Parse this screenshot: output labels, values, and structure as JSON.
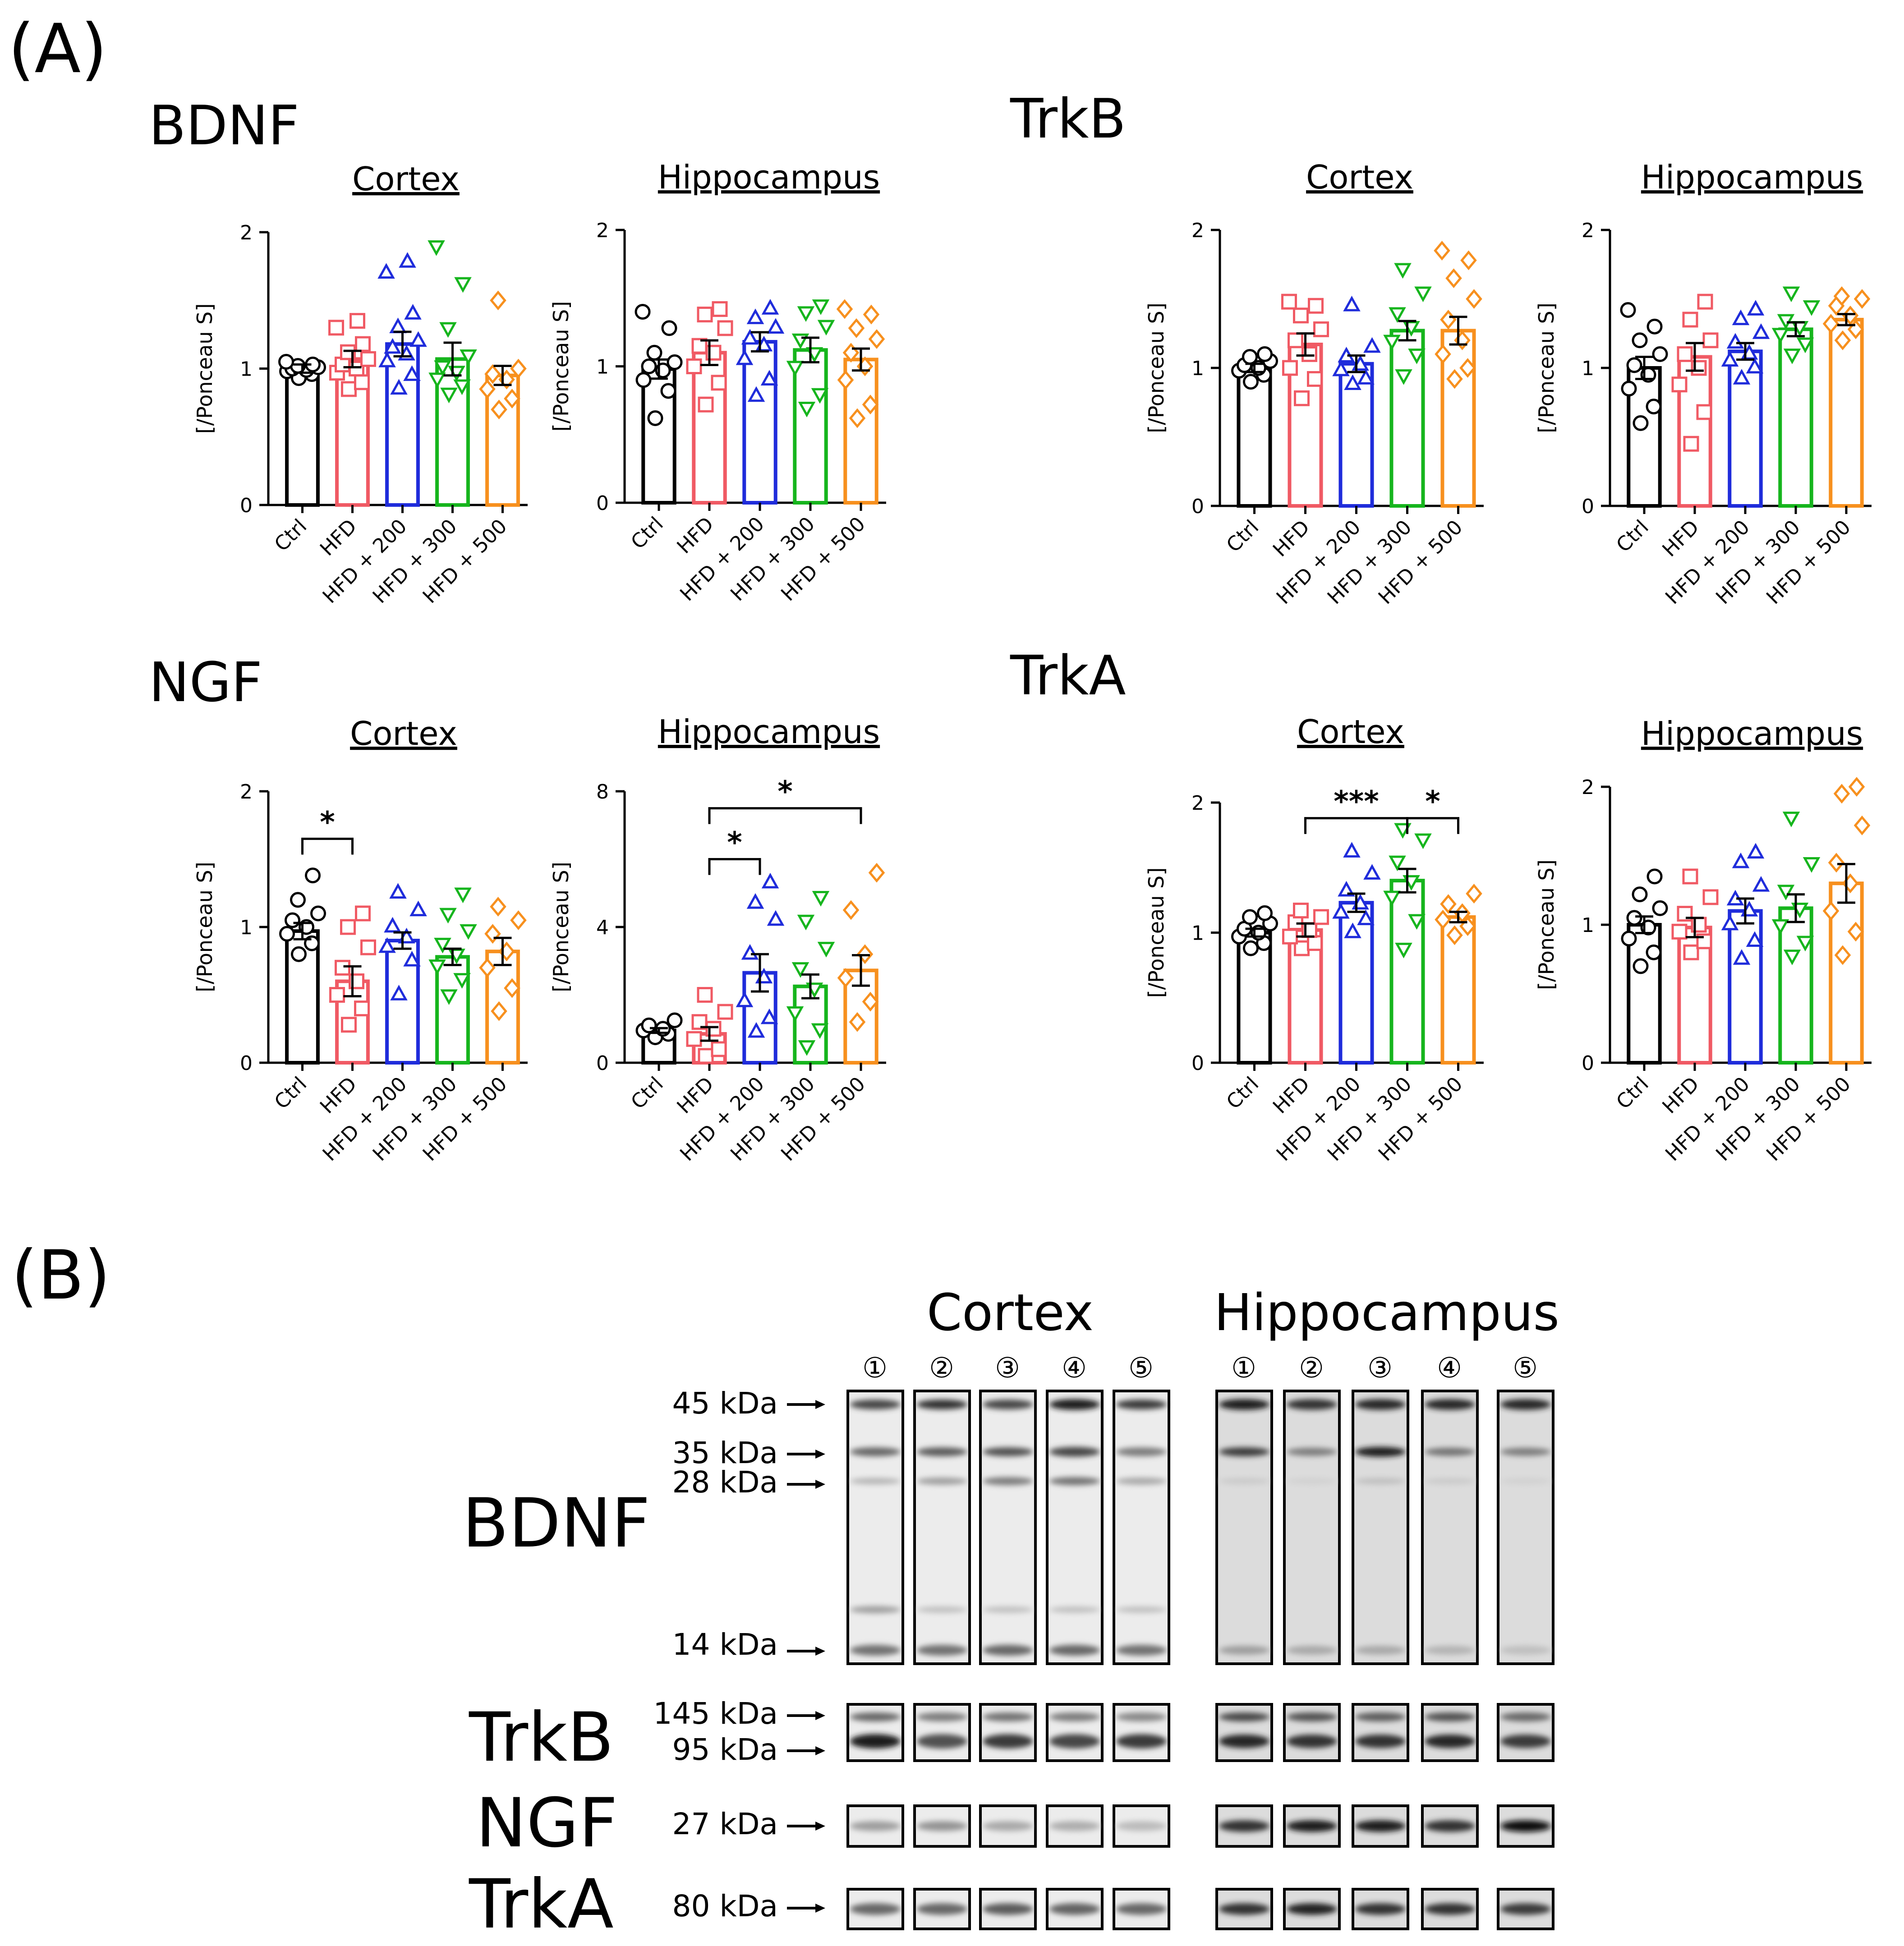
{
  "panel_labels": {
    "a": "(A)",
    "b": "(B)"
  },
  "colors": {
    "Ctrl": "#000000",
    "HFD": "#f05a64",
    "HFD + 200": "#1f2cdb",
    "HFD + 300": "#16b51d",
    "HFD + 500": "#f7901e"
  },
  "markers": {
    "Ctrl": "circle",
    "HFD": "square",
    "HFD + 200": "triangle-up",
    "HFD + 300": "triangle-down",
    "HFD + 500": "diamond"
  },
  "protein_labels": {
    "bdnf": "BDNF",
    "trkb": "TrkB",
    "ngf": "NGF",
    "trka": "TrkA"
  },
  "chart_data": [
    {
      "id": "bdnf_cortex",
      "protein": "BDNF",
      "type": "bar",
      "title": "Cortex",
      "ylabel": "[/Ponceau S]",
      "ylim": [
        0,
        2
      ],
      "yticks": [
        "0",
        "1",
        "2"
      ],
      "categories": [
        "Ctrl",
        "HFD",
        "HFD + 200",
        "HFD + 300",
        "HFD + 500"
      ],
      "values": [
        1.0,
        1.07,
        1.18,
        1.07,
        0.95
      ],
      "sem": [
        0.03,
        0.06,
        0.09,
        0.12,
        0.07
      ],
      "points": [
        [
          0.93,
          0.96,
          0.98,
          0.99,
          1.0,
          1.01,
          1.02,
          1.03,
          1.05
        ],
        [
          0.85,
          0.9,
          0.97,
          1.0,
          1.03,
          1.07,
          1.12,
          1.18,
          1.3,
          1.35
        ],
        [
          0.85,
          0.95,
          1.05,
          1.1,
          1.15,
          1.2,
          1.3,
          1.4,
          1.7,
          1.78
        ],
        [
          0.82,
          0.88,
          0.93,
          0.98,
          1.02,
          1.1,
          1.3,
          1.63,
          1.9
        ],
        [
          0.7,
          0.78,
          0.85,
          0.92,
          0.96,
          1.0,
          1.5
        ]
      ],
      "significance": []
    },
    {
      "id": "bdnf_hippocampus",
      "protein": "BDNF",
      "type": "bar",
      "title": "Hippocampus",
      "ylabel": "[/Ponceau S]",
      "ylim": [
        0,
        2
      ],
      "yticks": [
        "0",
        "1",
        "2"
      ],
      "categories": [
        "Ctrl",
        "HFD",
        "HFD + 200",
        "HFD + 300",
        "HFD + 500"
      ],
      "values": [
        0.98,
        1.1,
        1.18,
        1.12,
        1.05
      ],
      "sem": [
        0.07,
        0.09,
        0.07,
        0.09,
        0.08
      ],
      "points": [
        [
          0.62,
          0.82,
          0.9,
          0.97,
          1.0,
          1.03,
          1.1,
          1.28,
          1.4
        ],
        [
          0.72,
          0.88,
          1.0,
          1.1,
          1.15,
          1.28,
          1.38,
          1.42
        ],
        [
          0.78,
          0.9,
          1.05,
          1.15,
          1.2,
          1.28,
          1.35,
          1.42
        ],
        [
          0.7,
          0.8,
          1.0,
          1.1,
          1.2,
          1.3,
          1.4,
          1.45
        ],
        [
          0.62,
          0.72,
          0.9,
          1.0,
          1.1,
          1.2,
          1.28,
          1.38,
          1.42
        ]
      ],
      "significance": []
    },
    {
      "id": "trkb_cortex",
      "protein": "TrkB",
      "type": "bar",
      "title": "Cortex",
      "ylabel": "[/Ponceau S]",
      "ylim": [
        0,
        2
      ],
      "yticks": [
        "0",
        "1",
        "2"
      ],
      "categories": [
        "Ctrl",
        "HFD",
        "HFD + 200",
        "HFD + 300",
        "HFD + 500"
      ],
      "values": [
        1.0,
        1.17,
        1.03,
        1.27,
        1.27
      ],
      "sem": [
        0.03,
        0.08,
        0.06,
        0.07,
        0.1
      ],
      "points": [
        [
          0.9,
          0.95,
          0.98,
          1.0,
          1.02,
          1.05,
          1.08,
          1.1
        ],
        [
          0.78,
          0.92,
          1.0,
          1.1,
          1.2,
          1.28,
          1.38,
          1.45,
          1.48
        ],
        [
          0.88,
          0.92,
          0.98,
          1.02,
          1.08,
          1.15,
          1.45
        ],
        [
          0.95,
          1.1,
          1.2,
          1.3,
          1.4,
          1.55,
          1.72
        ],
        [
          0.92,
          1.0,
          1.1,
          1.2,
          1.35,
          1.5,
          1.65,
          1.78,
          1.85
        ]
      ],
      "significance": []
    },
    {
      "id": "trkb_hippocampus",
      "protein": "TrkB",
      "type": "bar",
      "title": "Hippocampus",
      "ylabel": "[/Ponceau S]",
      "ylim": [
        0,
        2
      ],
      "yticks": [
        "0",
        "1",
        "2"
      ],
      "categories": [
        "Ctrl",
        "HFD",
        "HFD + 200",
        "HFD + 300",
        "HFD + 500"
      ],
      "values": [
        1.0,
        1.08,
        1.12,
        1.28,
        1.35
      ],
      "sem": [
        0.08,
        0.1,
        0.06,
        0.05,
        0.04
      ],
      "points": [
        [
          0.6,
          0.72,
          0.85,
          0.95,
          1.02,
          1.1,
          1.2,
          1.3,
          1.42
        ],
        [
          0.45,
          0.68,
          0.88,
          1.0,
          1.1,
          1.2,
          1.35,
          1.48
        ],
        [
          0.92,
          1.0,
          1.05,
          1.1,
          1.18,
          1.25,
          1.35,
          1.42
        ],
        [
          1.1,
          1.18,
          1.25,
          1.3,
          1.35,
          1.45,
          1.55
        ],
        [
          1.2,
          1.28,
          1.32,
          1.38,
          1.45,
          1.5,
          1.52
        ]
      ],
      "significance": []
    },
    {
      "id": "ngf_cortex",
      "protein": "NGF",
      "type": "bar",
      "title": "Cortex",
      "ylabel": "[/Ponceau S]",
      "ylim": [
        0,
        2
      ],
      "yticks": [
        "0",
        "1",
        "2"
      ],
      "categories": [
        "Ctrl",
        "HFD",
        "HFD + 200",
        "HFD + 300",
        "HFD + 500"
      ],
      "values": [
        0.97,
        0.6,
        0.9,
        0.78,
        0.82
      ],
      "sem": [
        0.06,
        0.11,
        0.06,
        0.06,
        0.1
      ],
      "points": [
        [
          0.8,
          0.88,
          0.95,
          1.0,
          1.05,
          1.1,
          1.2,
          1.38
        ],
        [
          0.28,
          0.4,
          0.5,
          0.6,
          0.7,
          0.85,
          1.0,
          1.1
        ],
        [
          0.5,
          0.75,
          0.85,
          0.92,
          1.0,
          1.12,
          1.25
        ],
        [
          0.5,
          0.62,
          0.72,
          0.8,
          0.88,
          0.98,
          1.1,
          1.25
        ],
        [
          0.38,
          0.55,
          0.7,
          0.82,
          0.95,
          1.05,
          1.15
        ]
      ],
      "significance": [
        {
          "from": 0,
          "to": 1,
          "label": "*",
          "y": 1.65
        }
      ]
    },
    {
      "id": "ngf_hippocampus",
      "protein": "NGF",
      "type": "bar",
      "title": "Hippocampus",
      "ylabel": "[/Ponceau S]",
      "ylim": [
        0,
        8
      ],
      "yticks": [
        "0",
        "4",
        "8"
      ],
      "categories": [
        "Ctrl",
        "HFD",
        "HFD + 200",
        "HFD + 300",
        "HFD + 500"
      ],
      "values": [
        0.95,
        0.85,
        2.65,
        2.25,
        2.72
      ],
      "sem": [
        0.07,
        0.2,
        0.55,
        0.35,
        0.45
      ],
      "points": [
        [
          0.75,
          0.85,
          0.95,
          1.0,
          1.1,
          1.25
        ],
        [
          0.2,
          0.4,
          0.7,
          1.0,
          1.2,
          1.5,
          2.0
        ],
        [
          0.9,
          1.3,
          1.8,
          2.5,
          3.2,
          4.2,
          4.7,
          5.3
        ],
        [
          0.5,
          1.0,
          1.5,
          2.2,
          2.8,
          3.4,
          4.2,
          4.9
        ],
        [
          1.2,
          1.8,
          2.5,
          3.2,
          4.5,
          5.6
        ]
      ],
      "significance": [
        {
          "from": 1,
          "to": 2,
          "label": "*",
          "y": 6.0
        },
        {
          "from": 1,
          "to": 4,
          "label": "*",
          "y": 7.5
        }
      ]
    },
    {
      "id": "trka_cortex",
      "protein": "TrkA",
      "type": "bar",
      "title": "Cortex",
      "ylabel": "[/Ponceau S]",
      "ylim": [
        0,
        2
      ],
      "yticks": [
        "0",
        "1",
        "2"
      ],
      "categories": [
        "Ctrl",
        "HFD",
        "HFD + 200",
        "HFD + 300",
        "HFD + 500"
      ],
      "values": [
        1.0,
        1.02,
        1.23,
        1.4,
        1.12
      ],
      "sem": [
        0.03,
        0.05,
        0.07,
        0.09,
        0.04
      ],
      "points": [
        [
          0.88,
          0.92,
          0.97,
          1.0,
          1.03,
          1.07,
          1.12,
          1.15
        ],
        [
          0.88,
          0.92,
          0.97,
          1.02,
          1.08,
          1.12,
          1.17
        ],
        [
          1.0,
          1.1,
          1.15,
          1.22,
          1.32,
          1.45,
          1.62
        ],
        [
          0.88,
          1.1,
          1.28,
          1.4,
          1.55,
          1.72,
          1.8
        ],
        [
          0.98,
          1.05,
          1.1,
          1.15,
          1.22,
          1.3
        ]
      ],
      "significance": [
        {
          "from": 1,
          "to": 3,
          "label": "***",
          "y": 1.88
        },
        {
          "from": 3,
          "to": 4,
          "label": "*",
          "y": 1.88
        }
      ]
    },
    {
      "id": "trka_hippocampus",
      "protein": "TrkA",
      "type": "bar",
      "title": "Hippocampus",
      "ylabel": "[/Ponceau S]",
      "ylim": [
        0,
        2
      ],
      "yticks": [
        "0",
        "1",
        "2"
      ],
      "categories": [
        "Ctrl",
        "HFD",
        "HFD + 200",
        "HFD + 300",
        "HFD + 500"
      ],
      "values": [
        1.0,
        0.98,
        1.1,
        1.12,
        1.3
      ],
      "sem": [
        0.06,
        0.07,
        0.09,
        0.1,
        0.14
      ],
      "points": [
        [
          0.7,
          0.8,
          0.9,
          0.98,
          1.05,
          1.12,
          1.22,
          1.35
        ],
        [
          0.8,
          0.88,
          0.95,
          1.0,
          1.08,
          1.2,
          1.35
        ],
        [
          0.75,
          0.88,
          1.0,
          1.1,
          1.18,
          1.28,
          1.45,
          1.52
        ],
        [
          0.78,
          0.88,
          1.0,
          1.12,
          1.25,
          1.45,
          1.78
        ],
        [
          0.78,
          0.95,
          1.1,
          1.3,
          1.45,
          1.72,
          1.95,
          2.0
        ]
      ],
      "significance": []
    }
  ],
  "blot": {
    "regions": [
      "Cortex",
      "Hippocampus"
    ],
    "lane_numbers": [
      "①",
      "②",
      "③",
      "④",
      "⑤"
    ],
    "rows": [
      {
        "name": "BDNF",
        "markers": [
          "45 kDa",
          "35 kDa",
          "28 kDa",
          "14 kDa"
        ]
      },
      {
        "name": "TrkB",
        "markers": [
          "145 kDa",
          "95 kDa"
        ]
      },
      {
        "name": "NGF",
        "markers": [
          "27 kDa"
        ]
      },
      {
        "name": "TrkA",
        "markers": [
          "80 kDa"
        ]
      }
    ]
  }
}
